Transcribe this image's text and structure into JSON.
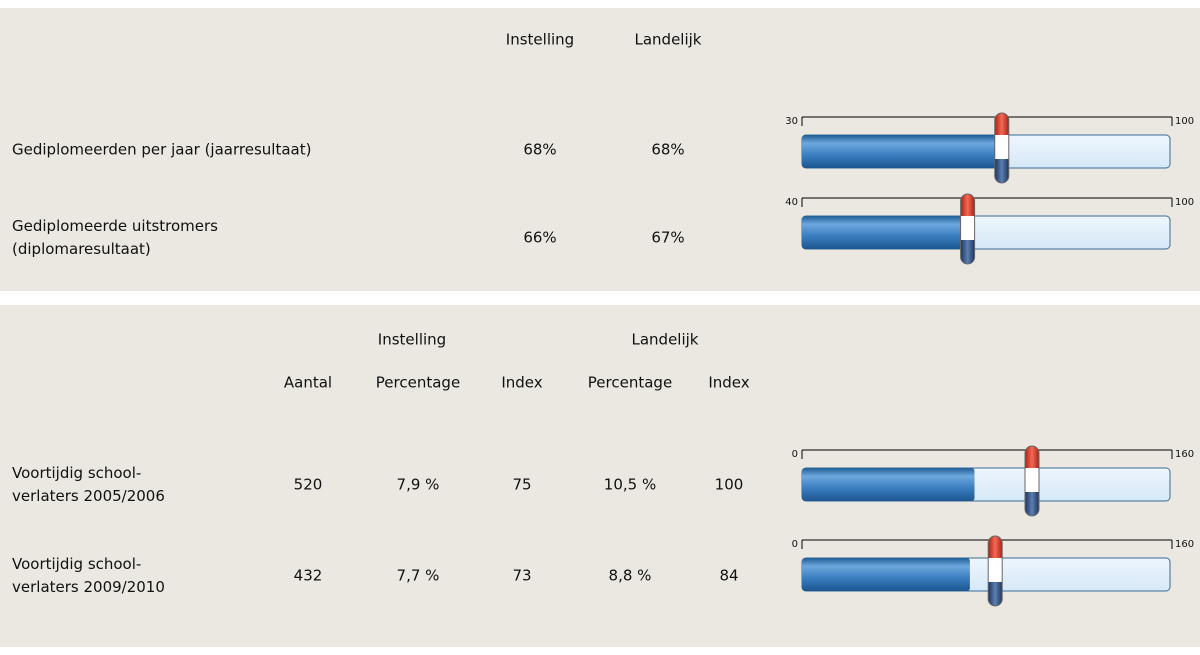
{
  "section1": {
    "headers": [
      "Instelling",
      "Landelijk"
    ],
    "rows": [
      {
        "label": [
          "Gediplomeerden per jaar (jaarresultaat)"
        ],
        "instelling": {
          "value": 68,
          "label": "68%"
        },
        "landelijk": {
          "value": 68,
          "label": "68%"
        },
        "scale": {
          "min": 30,
          "max": 100
        }
      },
      {
        "label": [
          "Gediplomeerde uitstromers",
          "(diplomaresultaat)"
        ],
        "instelling": {
          "value": 66,
          "label": "66%"
        },
        "landelijk": {
          "value": 67,
          "label": "67%"
        },
        "scale": {
          "min": 40,
          "max": 100
        }
      }
    ]
  },
  "section2": {
    "groups": [
      "Instelling",
      "Landelijk"
    ],
    "columns": [
      "Aantal",
      "Percentage",
      "Index",
      "Percentage",
      "Index"
    ],
    "rows": [
      {
        "label": [
          "Voortijdig school-",
          "verlaters 2005/2006"
        ],
        "aantal": 520,
        "percentage": "7,9 %",
        "index": 75,
        "landelijk_percentage": "10,5 %",
        "landelijk_index": 100,
        "scale": {
          "min": 0,
          "max": 160
        }
      },
      {
        "label": [
          "Voortijdig school-",
          "verlaters 2009/2010"
        ],
        "aantal": 432,
        "percentage": "7,7 %",
        "index": 73,
        "landelijk_percentage": "8,8 %",
        "landelijk_index": 84,
        "scale": {
          "min": 0,
          "max": 160
        }
      }
    ]
  }
}
